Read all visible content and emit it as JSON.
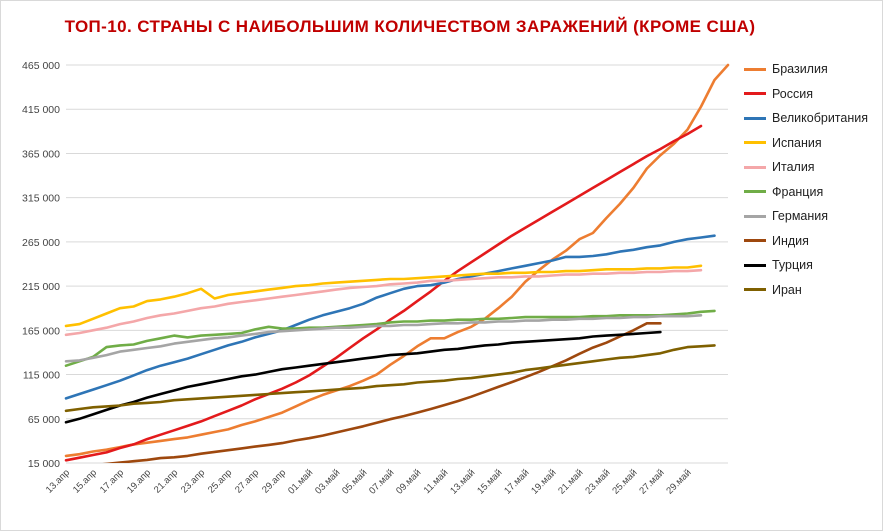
{
  "chart_data": {
    "type": "line",
    "title": "ТОП-10. СТРАНЫ С НАИБОЛЬШИМ КОЛИЧЕСТВОМ ЗАРАЖЕНИЙ (КРОМЕ США)",
    "xlabel": "",
    "ylabel": "",
    "ylim": [
      15000,
      465000
    ],
    "y_ticks": [
      15000,
      65000,
      115000,
      165000,
      215000,
      265000,
      315000,
      365000,
      415000,
      465000
    ],
    "y_tick_labels": [
      "15 000",
      "65 000",
      "115 000",
      "165 000",
      "215 000",
      "265 000",
      "315 000",
      "365 000",
      "415 000",
      "465 000"
    ],
    "x_start": "13.апр",
    "x_end": "30.май",
    "x_tick_labels": [
      "13.апр",
      "15.апр",
      "17.апр",
      "19.апр",
      "21.апр",
      "23.апр",
      "25.апр",
      "27.апр",
      "29.апр",
      "01.май",
      "03.май",
      "05.май",
      "07.май",
      "09.май",
      "11.май",
      "13.май",
      "15.май",
      "17.май",
      "19.май",
      "21.май",
      "23.май",
      "25.май",
      "27.май",
      "29.май"
    ],
    "grid": true,
    "legend_position": "right",
    "series": [
      {
        "name": "Бразилия",
        "color": "#ed7d31",
        "values": [
          23000,
          25000,
          28000,
          30000,
          33000,
          36000,
          38000,
          40000,
          42000,
          44000,
          47000,
          50000,
          53000,
          58000,
          62000,
          67000,
          72000,
          79000,
          86000,
          92000,
          97000,
          102000,
          108000,
          115000,
          126000,
          136000,
          147000,
          156000,
          156000,
          163000,
          169000,
          178000,
          190000,
          203000,
          220000,
          233000,
          245000,
          255000,
          268000,
          275000,
          292000,
          308000,
          326000,
          348000,
          363000,
          376000,
          392000,
          418000,
          448000,
          465000
        ]
      },
      {
        "name": "Россия",
        "color": "#e31a1c",
        "values": [
          18000,
          21000,
          24000,
          27000,
          32000,
          36000,
          42000,
          47000,
          52000,
          57000,
          62000,
          68000,
          74000,
          80000,
          87000,
          93000,
          99000,
          106000,
          114000,
          124000,
          134000,
          145000,
          156000,
          166000,
          177000,
          187000,
          198000,
          209000,
          221000,
          232000,
          242000,
          252000,
          262000,
          272000,
          281000,
          290000,
          299000,
          308000,
          317000,
          326000,
          335000,
          344000,
          353000,
          362000,
          370000,
          379000,
          387000,
          396000
        ]
      },
      {
        "name": "Великобритания",
        "color": "#2e75b6",
        "values": [
          88000,
          93000,
          98000,
          103000,
          108000,
          114000,
          120000,
          125000,
          129000,
          133000,
          138000,
          143000,
          148000,
          152000,
          157000,
          161000,
          165000,
          171000,
          177000,
          182000,
          186000,
          190000,
          195000,
          202000,
          207000,
          212000,
          215000,
          216000,
          219000,
          223000,
          226000,
          229000,
          232000,
          235000,
          238000,
          241000,
          244000,
          248000,
          248000,
          249000,
          251000,
          254000,
          256000,
          259000,
          261000,
          265000,
          268000,
          270000,
          272000
        ]
      },
      {
        "name": "Испания",
        "color": "#ffc000",
        "values": [
          170000,
          172000,
          178000,
          184000,
          190000,
          192000,
          198000,
          200000,
          203000,
          207000,
          212000,
          201000,
          205000,
          207000,
          209000,
          211000,
          213000,
          215000,
          216000,
          218000,
          219000,
          220000,
          221000,
          222000,
          223000,
          223000,
          224000,
          225000,
          226000,
          227000,
          228000,
          229000,
          229000,
          230000,
          230000,
          231000,
          231000,
          232000,
          232000,
          233000,
          234000,
          234000,
          234000,
          235000,
          235000,
          236000,
          236000,
          238000
        ]
      },
      {
        "name": "Италия",
        "color": "#f4a7a9",
        "values": [
          160000,
          162000,
          165000,
          168000,
          172000,
          175000,
          179000,
          182000,
          184000,
          187000,
          190000,
          192000,
          195000,
          197000,
          199000,
          201000,
          203000,
          205000,
          207000,
          209000,
          211000,
          213000,
          214000,
          215000,
          217000,
          218000,
          219000,
          221000,
          221000,
          222000,
          223000,
          224000,
          225000,
          225000,
          226000,
          226000,
          227000,
          228000,
          228000,
          229000,
          229000,
          230000,
          230000,
          231000,
          231000,
          232000,
          232000,
          233000
        ]
      },
      {
        "name": "Франция",
        "color": "#70ad47",
        "values": [
          125000,
          130000,
          135000,
          146000,
          148000,
          149000,
          153000,
          156000,
          159000,
          157000,
          159000,
          160000,
          161000,
          162000,
          166000,
          169000,
          167000,
          167000,
          168000,
          168000,
          169000,
          170000,
          171000,
          172000,
          174000,
          175000,
          175000,
          176000,
          176000,
          177000,
          177000,
          178000,
          178000,
          179000,
          180000,
          180000,
          180000,
          180000,
          180000,
          181000,
          181000,
          182000,
          182000,
          182000,
          182000,
          183000,
          184000,
          186000,
          187000
        ]
      },
      {
        "name": "Германия",
        "color": "#a5a5a5",
        "values": [
          130000,
          131000,
          134000,
          137000,
          141000,
          143000,
          145000,
          147000,
          150000,
          152000,
          154000,
          156000,
          157000,
          159000,
          161000,
          163000,
          164000,
          165000,
          166000,
          167000,
          168000,
          168000,
          169000,
          170000,
          170000,
          171000,
          171000,
          172000,
          173000,
          173000,
          174000,
          174000,
          175000,
          175000,
          176000,
          176000,
          177000,
          177000,
          178000,
          178000,
          179000,
          179000,
          180000,
          180000,
          181000,
          181000,
          181000,
          182000
        ]
      },
      {
        "name": "Индия",
        "color": "#9e480e",
        "values": [
          10000,
          11500,
          12500,
          14000,
          15500,
          17000,
          18500,
          20500,
          21500,
          23000,
          25500,
          27500,
          29500,
          31500,
          33500,
          35500,
          37500,
          40500,
          43000,
          46000,
          49500,
          53000,
          56500,
          60500,
          64500,
          68000,
          72000,
          76000,
          80500,
          85000,
          90000,
          95500,
          101000,
          106500,
          112000,
          118000,
          124500,
          131000,
          138500,
          145500,
          151000,
          158000,
          165000,
          173000,
          173000
        ]
      },
      {
        "name": "Турция",
        "color": "#000000",
        "values": [
          61000,
          65000,
          70000,
          75000,
          80000,
          84000,
          89000,
          93000,
          97000,
          101000,
          104000,
          107000,
          110000,
          113000,
          115000,
          118000,
          121000,
          123000,
          125000,
          127000,
          129000,
          131000,
          133000,
          135000,
          137000,
          138000,
          139000,
          141000,
          143000,
          144000,
          146000,
          148000,
          149000,
          151000,
          152000,
          153000,
          154000,
          155000,
          156000,
          158000,
          159000,
          160000,
          161000,
          162000,
          163000
        ]
      },
      {
        "name": "Иран",
        "color": "#7f6000",
        "values": [
          74000,
          76000,
          78000,
          79000,
          80000,
          82000,
          83000,
          84000,
          86000,
          87000,
          88000,
          89000,
          90000,
          91000,
          92000,
          93000,
          94000,
          95000,
          96000,
          97000,
          98000,
          99000,
          100000,
          102000,
          103000,
          104000,
          106000,
          107000,
          108000,
          110000,
          111000,
          113000,
          115000,
          117000,
          120000,
          122000,
          124000,
          126000,
          128000,
          130000,
          132000,
          134000,
          135000,
          137000,
          139000,
          143000,
          146000,
          147000,
          148000
        ]
      }
    ]
  }
}
